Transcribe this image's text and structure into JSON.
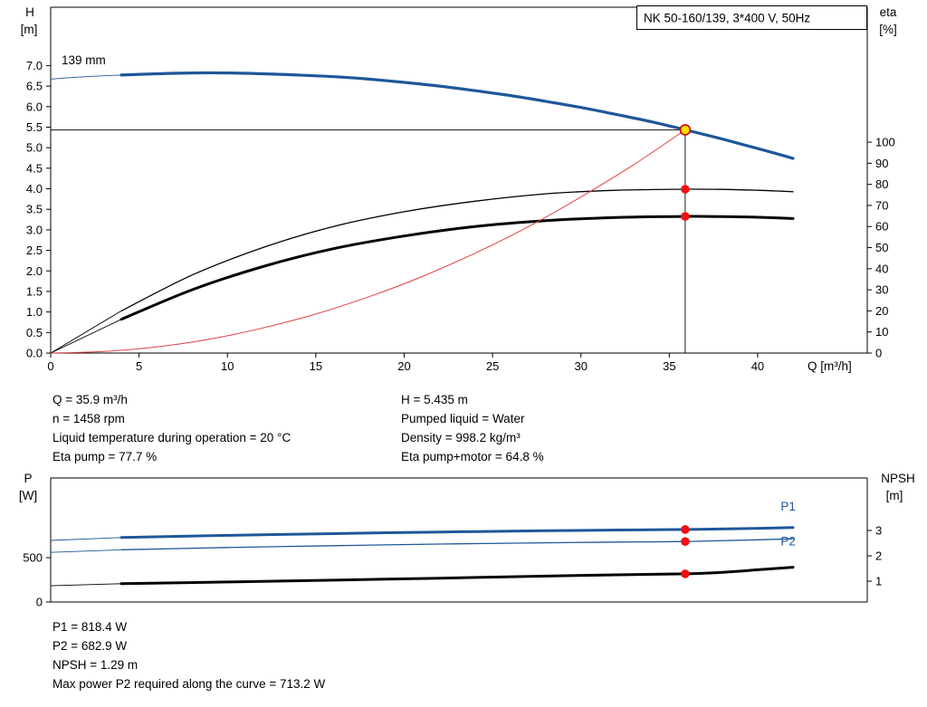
{
  "colors": {
    "curve_blue": "#1e5799",
    "curve_black": "#000000",
    "system_red": "#e04040",
    "marker_red": "#ee1111",
    "op_fill": "#ffdf00",
    "op_stroke": "#cc0000"
  },
  "info_top": {
    "left": [
      "Q = 35.9 m³/h",
      "n = 1458 rpm",
      "Liquid temperature during operation = 20 °C",
      "Eta pump = 77.7 %"
    ],
    "right": [
      "H = 5.435 m",
      "Pumped liquid = Water",
      "Density = 998.2 kg/m³",
      "Eta pump+motor = 64.8 %"
    ]
  },
  "info_bottom": [
    "P1 = 818.4 W",
    "P2 = 682.9 W",
    "NPSH = 1.29 m",
    "Max power P2 required along the curve = 713.2 W"
  ],
  "chart_data": [
    {
      "type": "line",
      "title": "NK 50-160/139, 3*400 V, 50Hz",
      "impeller_label": "139 mm",
      "x_axis": {
        "label": "Q [m³/h]",
        "min": 0,
        "max": 46.2,
        "ticks": [
          "0",
          "5",
          "10",
          "15",
          "20",
          "25",
          "30",
          "35",
          "40"
        ]
      },
      "y_left": {
        "label_line1": "H",
        "label_line2": "[m]",
        "min": 0,
        "max": 8.42,
        "ticks": [
          "0.0",
          "0.5",
          "1.0",
          "1.5",
          "2.0",
          "2.5",
          "3.0",
          "3.5",
          "4.0",
          "4.5",
          "5.0",
          "5.5",
          "6.0",
          "6.5",
          "7.0"
        ]
      },
      "y_right": {
        "label_line1": "eta",
        "label_line2": "[%]",
        "min": 0,
        "max": 164,
        "ticks": [
          "0",
          "10",
          "20",
          "30",
          "40",
          "50",
          "60",
          "70",
          "80",
          "90",
          "100"
        ]
      },
      "series": [
        {
          "name": "head-curve-139mm",
          "axis": "left",
          "color": "#1e5799",
          "width": 3.2,
          "thin_lead_until": 4,
          "points": [
            [
              0,
              6.67
            ],
            [
              2,
              6.73
            ],
            [
              4,
              6.77
            ],
            [
              6,
              6.8
            ],
            [
              8,
              6.82
            ],
            [
              10,
              6.82
            ],
            [
              12,
              6.8
            ],
            [
              14,
              6.77
            ],
            [
              16,
              6.73
            ],
            [
              18,
              6.67
            ],
            [
              20,
              6.59
            ],
            [
              22,
              6.5
            ],
            [
              24,
              6.39
            ],
            [
              26,
              6.27
            ],
            [
              28,
              6.13
            ],
            [
              30,
              5.98
            ],
            [
              32,
              5.81
            ],
            [
              34,
              5.63
            ],
            [
              35.9,
              5.435
            ],
            [
              38,
              5.21
            ],
            [
              40,
              4.98
            ],
            [
              42,
              4.74
            ]
          ]
        },
        {
          "name": "eta-pump-curve",
          "axis": "right",
          "color": "#000000",
          "width": 1.3,
          "thin_lead_until": 4,
          "points": [
            [
              0,
              0
            ],
            [
              4,
              20
            ],
            [
              8,
              37
            ],
            [
              12,
              50
            ],
            [
              16,
              60
            ],
            [
              20,
              67
            ],
            [
              24,
              72
            ],
            [
              28,
              75.5
            ],
            [
              32,
              77.2
            ],
            [
              35.9,
              77.7
            ],
            [
              38,
              77.6
            ],
            [
              40,
              77.2
            ],
            [
              42,
              76.5
            ]
          ]
        },
        {
          "name": "eta-pump-motor-curve",
          "axis": "right",
          "color": "#000000",
          "width": 3,
          "thin_lead_until": 4,
          "points": [
            [
              0,
              0
            ],
            [
              4,
              16
            ],
            [
              8,
              30
            ],
            [
              12,
              41
            ],
            [
              16,
              49.5
            ],
            [
              20,
              55.5
            ],
            [
              24,
              60
            ],
            [
              28,
              62.8
            ],
            [
              32,
              64.3
            ],
            [
              35.9,
              64.8
            ],
            [
              38,
              64.7
            ],
            [
              40,
              64.4
            ],
            [
              42,
              63.8
            ]
          ]
        },
        {
          "name": "system-curve",
          "axis": "left",
          "color": "#e04040",
          "width": 1,
          "points": [
            [
              0,
              0
            ],
            [
              3,
              0.04
            ],
            [
              6,
              0.15
            ],
            [
              9,
              0.34
            ],
            [
              12,
              0.61
            ],
            [
              15,
              0.95
            ],
            [
              18,
              1.37
            ],
            [
              21,
              1.86
            ],
            [
              24,
              2.43
            ],
            [
              27,
              3.07
            ],
            [
              30,
              3.8
            ],
            [
              33,
              4.59
            ],
            [
              35.9,
              5.435
            ]
          ]
        }
      ],
      "crosshair": {
        "x": 35.9,
        "y": 5.435
      },
      "markers": [
        {
          "x": 35.9,
          "y": 77.7,
          "axis": "right"
        },
        {
          "x": 35.9,
          "y": 64.8,
          "axis": "right"
        }
      ],
      "operating_point": {
        "x": 35.9,
        "y": 5.435
      }
    },
    {
      "type": "line",
      "x_axis": {
        "label": "",
        "min": 0,
        "max": 46.2,
        "ticks": []
      },
      "y_left": {
        "label_line1": "P",
        "label_line2": "[W]",
        "min": 0,
        "max": 1400,
        "ticks": [
          "0",
          "500"
        ]
      },
      "y_right": {
        "label_line1": "NPSH",
        "label_line2": "[m]",
        "min": 0.18,
        "max": 5.07,
        "ticks": [
          "1",
          "2",
          "3"
        ]
      },
      "series": [
        {
          "name": "p1-power-curve",
          "axis": "left",
          "color": "#1e5799",
          "width": 3,
          "thin_lead_until": 4,
          "label": "P1",
          "points": [
            [
              0,
              695
            ],
            [
              4,
              728
            ],
            [
              10,
              752
            ],
            [
              16,
              772
            ],
            [
              22,
              790
            ],
            [
              28,
              804
            ],
            [
              32,
              812
            ],
            [
              35.9,
              818.4
            ],
            [
              39,
              828
            ],
            [
              42,
              840
            ]
          ]
        },
        {
          "name": "p2-power-curve",
          "axis": "left",
          "color": "#1e5799",
          "width": 1.3,
          "thin_lead_until": 4,
          "label": "P2",
          "points": [
            [
              0,
              560
            ],
            [
              4,
              590
            ],
            [
              10,
              615
            ],
            [
              16,
              636
            ],
            [
              22,
              654
            ],
            [
              28,
              668
            ],
            [
              32,
              676
            ],
            [
              35.9,
              682.9
            ],
            [
              40,
              702
            ],
            [
              42,
              713.2
            ]
          ]
        },
        {
          "name": "npsh-curve",
          "axis": "right",
          "color": "#000000",
          "width": 3,
          "thin_lead_until": 4,
          "points": [
            [
              0,
              0.82
            ],
            [
              4,
              0.9
            ],
            [
              10,
              0.97
            ],
            [
              16,
              1.04
            ],
            [
              22,
              1.12
            ],
            [
              28,
              1.2
            ],
            [
              32,
              1.25
            ],
            [
              35.9,
              1.29
            ],
            [
              38,
              1.35
            ],
            [
              40,
              1.45
            ],
            [
              42,
              1.55
            ]
          ]
        }
      ],
      "markers": [
        {
          "x": 35.9,
          "y": 818.4,
          "axis": "left"
        },
        {
          "x": 35.9,
          "y": 682.9,
          "axis": "left"
        },
        {
          "x": 35.9,
          "y": 1.29,
          "axis": "right"
        }
      ],
      "curve_labels": [
        {
          "text": "P1",
          "x": 41.3,
          "y": 1030,
          "axis": "left",
          "color": "#1e5799"
        },
        {
          "text": "P2",
          "x": 41.3,
          "y": 640,
          "axis": "left",
          "color": "#1e5799"
        }
      ]
    }
  ]
}
